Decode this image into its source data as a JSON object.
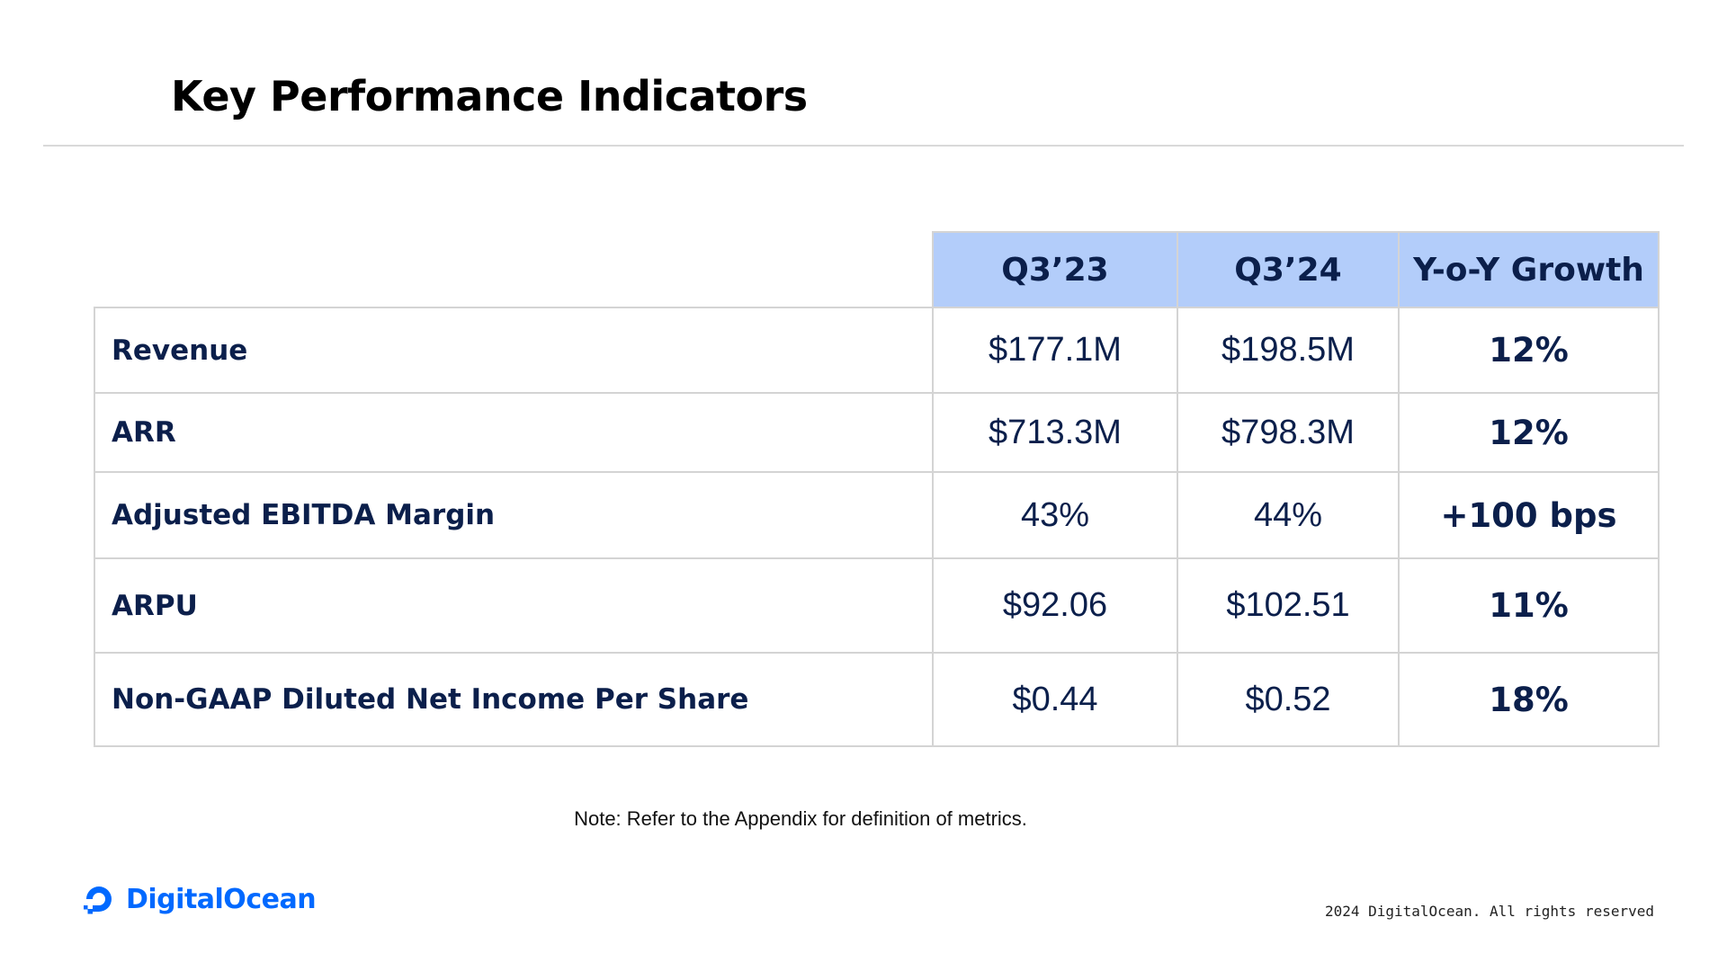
{
  "slide": {
    "title": "Key Performance Indicators"
  },
  "table": {
    "columns": [
      "Q3’23",
      "Q3’24",
      "Y-o-Y Growth"
    ],
    "rows": [
      {
        "metric": "Revenue",
        "q3_23": "$177.1M",
        "q3_24": "$198.5M",
        "growth": "12%"
      },
      {
        "metric": "ARR",
        "q3_23": "$713.3M",
        "q3_24": "$798.3M",
        "growth": "12%"
      },
      {
        "metric": "Adjusted EBITDA Margin",
        "q3_23": "43%",
        "q3_24": "44%",
        "growth": "+100 bps"
      },
      {
        "metric": "ARPU",
        "q3_23": "$92.06",
        "q3_24": "$102.51",
        "growth": "11%"
      },
      {
        "metric": "Non-GAAP Diluted Net Income Per Share",
        "q3_23": "$0.44",
        "q3_24": "$0.52",
        "growth": "18%"
      }
    ]
  },
  "footer": {
    "note": "Note: Refer to the Appendix for definition of metrics.",
    "logo_text": "DigitalOcean",
    "logo_icon": "digitalocean-logo-icon",
    "copyright": "2024 DigitalOcean. All rights reserved"
  },
  "colors": {
    "header_fill": "#b3cdfa",
    "text_navy": "#0b1f4b",
    "brand_blue": "#0069ff",
    "border": "#d4d4d4"
  }
}
